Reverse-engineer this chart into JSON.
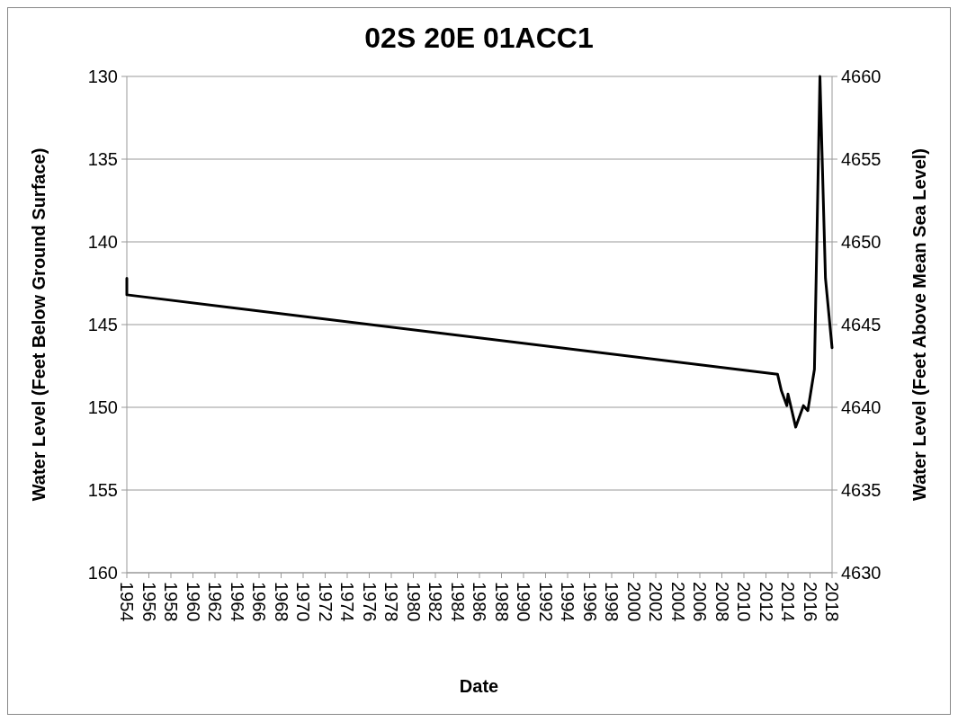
{
  "chart_data": {
    "type": "line",
    "title": "02S 20E 01ACC1",
    "xlabel": "Date",
    "ylabel": "Water Level (Feet Below Ground Surface)",
    "y2label": "Water Level (Feet Above Mean Sea Level)",
    "x": [
      1954.0,
      1954.0,
      2013.05,
      2013.4,
      2013.9,
      2014.0,
      2014.7,
      2015.4,
      2015.8,
      2016.4,
      2016.9,
      2017.4,
      2018.0
    ],
    "series": [
      {
        "color": "#000000",
        "values": [
          142.2,
          143.2,
          148.0,
          149.0,
          149.9,
          149.2,
          151.2,
          149.9,
          150.2,
          147.7,
          130,
          142.2,
          146.4
        ]
      }
    ],
    "xlim": [
      1954,
      2018
    ],
    "xticks": [
      1954,
      1956,
      1958,
      1960,
      1962,
      1964,
      1966,
      1968,
      1970,
      1972,
      1974,
      1976,
      1978,
      1980,
      1982,
      1984,
      1986,
      1988,
      1990,
      1992,
      1994,
      1996,
      1998,
      2000,
      2002,
      2004,
      2006,
      2008,
      2010,
      2012,
      2014,
      2016,
      2018
    ],
    "ylim": [
      160,
      130
    ],
    "yticks": [
      160,
      155,
      150,
      145,
      140,
      135,
      130
    ],
    "y2lim": [
      4630,
      4660
    ],
    "y2ticks": [
      4630,
      4635,
      4640,
      4645,
      4650,
      4655,
      4660
    ],
    "grid": "y",
    "marker": "none",
    "line_style": "solid"
  }
}
